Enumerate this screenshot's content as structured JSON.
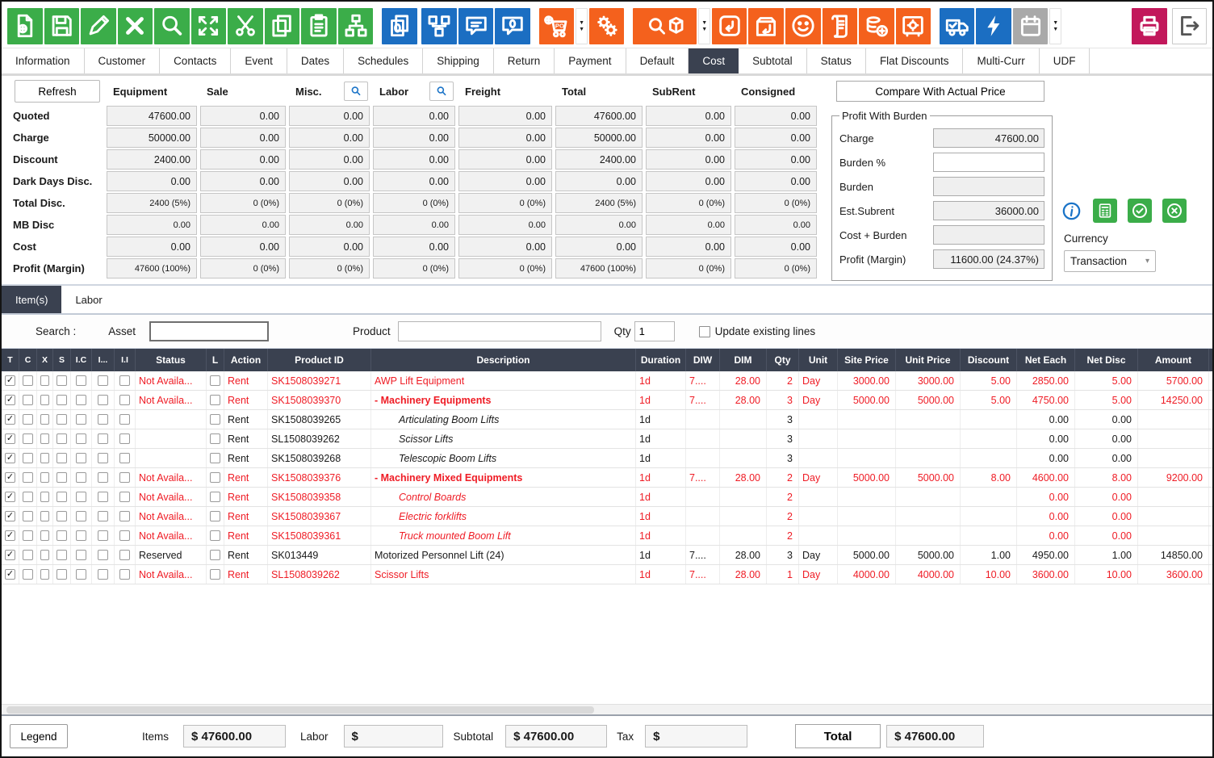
{
  "colors": {
    "green": "#3BAD49",
    "blue": "#1B6EC2",
    "orange": "#F4611D",
    "crimson": "#C2185B",
    "dark": "#3A4150",
    "red_text": "#EF1C25",
    "accent_blue": "#1A73C7"
  },
  "toolbar": {
    "buttons": [
      {
        "name": "new-document",
        "color": "green"
      },
      {
        "name": "save",
        "color": "green"
      },
      {
        "name": "edit",
        "color": "green"
      },
      {
        "name": "delete",
        "color": "green"
      },
      {
        "name": "search",
        "color": "green"
      },
      {
        "name": "expand",
        "color": "green"
      },
      {
        "name": "cut",
        "color": "green"
      },
      {
        "name": "copy",
        "color": "green"
      },
      {
        "name": "paste",
        "color": "green"
      },
      {
        "name": "hierarchy",
        "color": "green"
      },
      {
        "name": "gap"
      },
      {
        "name": "duplicate-count",
        "color": "blue"
      },
      {
        "name": "gap-s"
      },
      {
        "name": "workflow",
        "color": "blue"
      },
      {
        "name": "comment",
        "color": "blue"
      },
      {
        "name": "comment-count",
        "color": "blue"
      },
      {
        "name": "gap"
      },
      {
        "name": "purchase-order-cart",
        "color": "orange"
      },
      {
        "name": "dropdown-arrows",
        "color": "chevron"
      },
      {
        "name": "gears",
        "color": "orange"
      },
      {
        "name": "gap"
      },
      {
        "name": "product-search",
        "color": "orange",
        "wide": true
      },
      {
        "name": "dropdown-arrows",
        "color": "chevron"
      },
      {
        "name": "journal-return",
        "color": "orange"
      },
      {
        "name": "box-return",
        "color": "orange"
      },
      {
        "name": "smiley",
        "color": "orange"
      },
      {
        "name": "receipt",
        "color": "orange"
      },
      {
        "name": "coins-add",
        "color": "orange"
      },
      {
        "name": "safe",
        "color": "orange"
      },
      {
        "name": "gap"
      },
      {
        "name": "truck-check",
        "color": "blue"
      },
      {
        "name": "lightning",
        "color": "blue"
      },
      {
        "name": "calendar",
        "color": "gray"
      },
      {
        "name": "dropdown-arrows",
        "color": "chevron"
      },
      {
        "name": "gap-xl"
      },
      {
        "name": "print",
        "color": "crimson"
      },
      {
        "name": "gap-s"
      },
      {
        "name": "exit",
        "color": "white"
      }
    ]
  },
  "tabs": {
    "active": "Cost",
    "items": [
      "Information",
      "Customer",
      "Contacts",
      "Event",
      "Dates",
      "Schedules",
      "Shipping",
      "Return",
      "Payment",
      "Default",
      "Cost",
      "Subtotal",
      "Status",
      "Flat Discounts",
      "Multi-Curr",
      "UDF"
    ]
  },
  "cost_panel": {
    "refresh_label": "Refresh",
    "columns": [
      "Equipment",
      "Sale",
      "Misc.",
      "Labor",
      "Freight",
      "Total",
      "SubRent",
      "Consigned"
    ],
    "search_columns": [
      "Misc.",
      "Labor"
    ],
    "rows": [
      {
        "label": "Quoted",
        "small": false,
        "values": [
          "47600.00",
          "0.00",
          "0.00",
          "0.00",
          "0.00",
          "47600.00",
          "0.00",
          "0.00"
        ]
      },
      {
        "label": "Charge",
        "small": false,
        "values": [
          "50000.00",
          "0.00",
          "0.00",
          "0.00",
          "0.00",
          "50000.00",
          "0.00",
          "0.00"
        ]
      },
      {
        "label": "Discount",
        "small": false,
        "values": [
          "2400.00",
          "0.00",
          "0.00",
          "0.00",
          "0.00",
          "2400.00",
          "0.00",
          "0.00"
        ]
      },
      {
        "label": "Dark Days Disc.",
        "small": false,
        "values": [
          "0.00",
          "0.00",
          "0.00",
          "0.00",
          "0.00",
          "0.00",
          "0.00",
          "0.00"
        ]
      },
      {
        "label": "Total Disc.",
        "small": true,
        "values": [
          "2400 (5%)",
          "0 (0%)",
          "0 (0%)",
          "0 (0%)",
          "0 (0%)",
          "2400 (5%)",
          "0 (0%)",
          "0 (0%)"
        ]
      },
      {
        "label": "MB Disc",
        "small": true,
        "values": [
          "0.00",
          "0.00",
          "0.00",
          "0.00",
          "0.00",
          "0.00",
          "0.00",
          "0.00"
        ]
      },
      {
        "label": "Cost",
        "small": false,
        "values": [
          "0.00",
          "0.00",
          "0.00",
          "0.00",
          "0.00",
          "0.00",
          "0.00",
          "0.00"
        ]
      },
      {
        "label": "Profit (Margin)",
        "small": true,
        "values": [
          "47600 (100%)",
          "0 (0%)",
          "0 (0%)",
          "0 (0%)",
          "0 (0%)",
          "47600 (100%)",
          "0 (0%)",
          "0 (0%)"
        ]
      }
    ],
    "compare_button": "Compare With Actual Price",
    "profit_with_burden": {
      "title": "Profit With Burden",
      "fields": [
        {
          "label": "Charge",
          "value": "47600.00",
          "state": "readonly"
        },
        {
          "label": "Burden %",
          "value": "",
          "state": "editable"
        },
        {
          "label": "Burden",
          "value": "",
          "state": "readonly"
        },
        {
          "label": "Est.Subrent",
          "value": "36000.00",
          "state": "readonly"
        },
        {
          "label": "Cost + Burden",
          "value": "",
          "state": "readonly"
        },
        {
          "label": "Profit (Margin)",
          "value": "11600.00 (24.37%)",
          "state": "readonly"
        }
      ]
    },
    "currency_label": "Currency",
    "currency_value": "Transaction"
  },
  "items_section": {
    "tabs": {
      "active": "Item(s)",
      "items": [
        "Item(s)",
        "Labor"
      ]
    },
    "search": {
      "label": "Search :",
      "asset_label": "Asset",
      "asset_value": "",
      "product_label": "Product",
      "product_value": "",
      "qty_label": "Qty",
      "qty_value": "1",
      "update_checkbox_label": "Update existing lines",
      "update_checked": false
    }
  },
  "items_table": {
    "columns": [
      "T",
      "C",
      "X",
      "S",
      "I.C",
      "I...",
      "I.I",
      "Status",
      "L",
      "Action",
      "Product ID",
      "Description",
      "Duration",
      "DIW",
      "DIM",
      "Qty",
      "Unit",
      "Site Price",
      "Unit Price",
      "Discount",
      "Net Each",
      "Net Disc",
      "Amount"
    ],
    "rows": [
      {
        "checked": true,
        "status": "Not Availa...",
        "action": "Rent",
        "product_id": "SK1508039271",
        "description": "AWP Lift Equipment",
        "desc_style": "normal",
        "duration": "1d",
        "diw": "7....",
        "dim": "28.00",
        "qty": "2",
        "unit": "Day",
        "site_price": "3000.00",
        "unit_price": "3000.00",
        "discount": "5.00",
        "net_each": "2850.00",
        "net_disc": "5.00",
        "amount": "5700.00",
        "color": "red"
      },
      {
        "checked": true,
        "status": "Not Availa...",
        "action": "Rent",
        "product_id": "SK1508039370",
        "description": "- Machinery Equipments",
        "desc_style": "bold",
        "duration": "1d",
        "diw": "7....",
        "dim": "28.00",
        "qty": "3",
        "unit": "Day",
        "site_price": "5000.00",
        "unit_price": "5000.00",
        "discount": "5.00",
        "net_each": "4750.00",
        "net_disc": "5.00",
        "amount": "14250.00",
        "color": "red"
      },
      {
        "checked": true,
        "status": "",
        "action": "Rent",
        "product_id": "SK1508039265",
        "description": "Articulating Boom Lifts",
        "desc_style": "italic",
        "duration": "1d",
        "diw": "",
        "dim": "",
        "qty": "3",
        "unit": "",
        "site_price": "",
        "unit_price": "",
        "discount": "",
        "net_each": "0.00",
        "net_disc": "0.00",
        "amount": "",
        "color": "black"
      },
      {
        "checked": true,
        "status": "",
        "action": "Rent",
        "product_id": "SL1508039262",
        "description": "Scissor Lifts",
        "desc_style": "italic",
        "duration": "1d",
        "diw": "",
        "dim": "",
        "qty": "3",
        "unit": "",
        "site_price": "",
        "unit_price": "",
        "discount": "",
        "net_each": "0.00",
        "net_disc": "0.00",
        "amount": "",
        "color": "black"
      },
      {
        "checked": true,
        "status": "",
        "action": "Rent",
        "product_id": "SK1508039268",
        "description": "Telescopic Boom Lifts",
        "desc_style": "italic",
        "duration": "1d",
        "diw": "",
        "dim": "",
        "qty": "3",
        "unit": "",
        "site_price": "",
        "unit_price": "",
        "discount": "",
        "net_each": "0.00",
        "net_disc": "0.00",
        "amount": "",
        "color": "black"
      },
      {
        "checked": true,
        "status": "Not Availa...",
        "action": "Rent",
        "product_id": "SK1508039376",
        "description": "- Machinery Mixed Equipments",
        "desc_style": "bold",
        "duration": "1d",
        "diw": "7....",
        "dim": "28.00",
        "qty": "2",
        "unit": "Day",
        "site_price": "5000.00",
        "unit_price": "5000.00",
        "discount": "8.00",
        "net_each": "4600.00",
        "net_disc": "8.00",
        "amount": "9200.00",
        "color": "red"
      },
      {
        "checked": true,
        "status": "Not Availa...",
        "action": "Rent",
        "product_id": "SK1508039358",
        "description": "Control Boards",
        "desc_style": "italic",
        "duration": "1d",
        "diw": "",
        "dim": "",
        "qty": "2",
        "unit": "",
        "site_price": "",
        "unit_price": "",
        "discount": "",
        "net_each": "0.00",
        "net_disc": "0.00",
        "amount": "",
        "color": "red"
      },
      {
        "checked": true,
        "status": "Not Availa...",
        "action": "Rent",
        "product_id": "SK1508039367",
        "description": "Electric forklifts",
        "desc_style": "italic",
        "duration": "1d",
        "diw": "",
        "dim": "",
        "qty": "2",
        "unit": "",
        "site_price": "",
        "unit_price": "",
        "discount": "",
        "net_each": "0.00",
        "net_disc": "0.00",
        "amount": "",
        "color": "red"
      },
      {
        "checked": true,
        "status": "Not Availa...",
        "action": "Rent",
        "product_id": "SK1508039361",
        "description": "Truck mounted Boom Lift",
        "desc_style": "italic",
        "duration": "1d",
        "diw": "",
        "dim": "",
        "qty": "2",
        "unit": "",
        "site_price": "",
        "unit_price": "",
        "discount": "",
        "net_each": "0.00",
        "net_disc": "0.00",
        "amount": "",
        "color": "red"
      },
      {
        "checked": true,
        "status": "Reserved",
        "action": "Rent",
        "product_id": "SK013449",
        "description": "Motorized Personnel Lift (24)",
        "desc_style": "normal",
        "duration": "1d",
        "diw": "7....",
        "dim": "28.00",
        "qty": "3",
        "unit": "Day",
        "site_price": "5000.00",
        "unit_price": "5000.00",
        "discount": "1.00",
        "net_each": "4950.00",
        "net_disc": "1.00",
        "amount": "14850.00",
        "color": "black"
      },
      {
        "checked": true,
        "status": "Not Availa...",
        "action": "Rent",
        "product_id": "SL1508039262",
        "description": "Scissor Lifts",
        "desc_style": "normal",
        "duration": "1d",
        "diw": "7....",
        "dim": "28.00",
        "qty": "1",
        "unit": "Day",
        "site_price": "4000.00",
        "unit_price": "4000.00",
        "discount": "10.00",
        "net_each": "3600.00",
        "net_disc": "10.00",
        "amount": "3600.00",
        "color": "red"
      }
    ]
  },
  "footer": {
    "legend_label": "Legend",
    "items_label": "Items",
    "items_value": "$ 47600.00",
    "labor_label": "Labor",
    "labor_value": "$",
    "subtotal_label": "Subtotal",
    "subtotal_value": "$ 47600.00",
    "tax_label": "Tax",
    "tax_value": "$",
    "total_label": "Total",
    "total_value": "$ 47600.00"
  }
}
